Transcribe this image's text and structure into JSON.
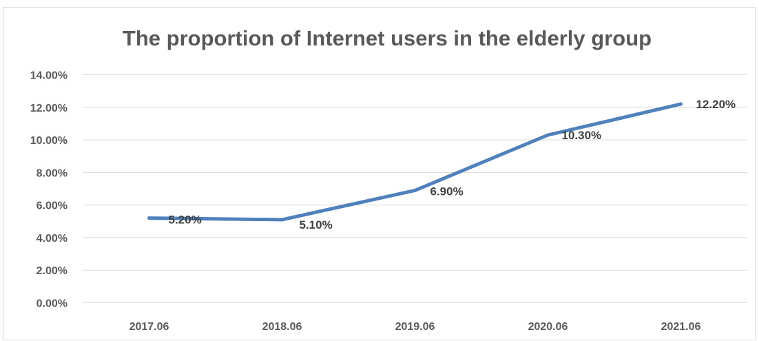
{
  "chart_data": {
    "type": "line",
    "title": "The proportion of Internet users in the elderly group",
    "xlabel": "",
    "ylabel": "",
    "categories": [
      "2017.06",
      "2018.06",
      "2019.06",
      "2020.06",
      "2021.06"
    ],
    "series": [
      {
        "values": [
          5.2,
          5.1,
          6.9,
          10.3,
          12.2
        ],
        "labels": [
          "5.20%",
          "5.10%",
          "6.90%",
          "10.30%",
          "12.20%"
        ],
        "color": "#4f81bd"
      }
    ],
    "yticks": [
      "0.00%",
      "2.00%",
      "4.00%",
      "6.00%",
      "8.00%",
      "10.00%",
      "12.00%",
      "14.00%"
    ],
    "ylim": [
      0,
      14
    ],
    "grid": true,
    "legend": "none"
  }
}
